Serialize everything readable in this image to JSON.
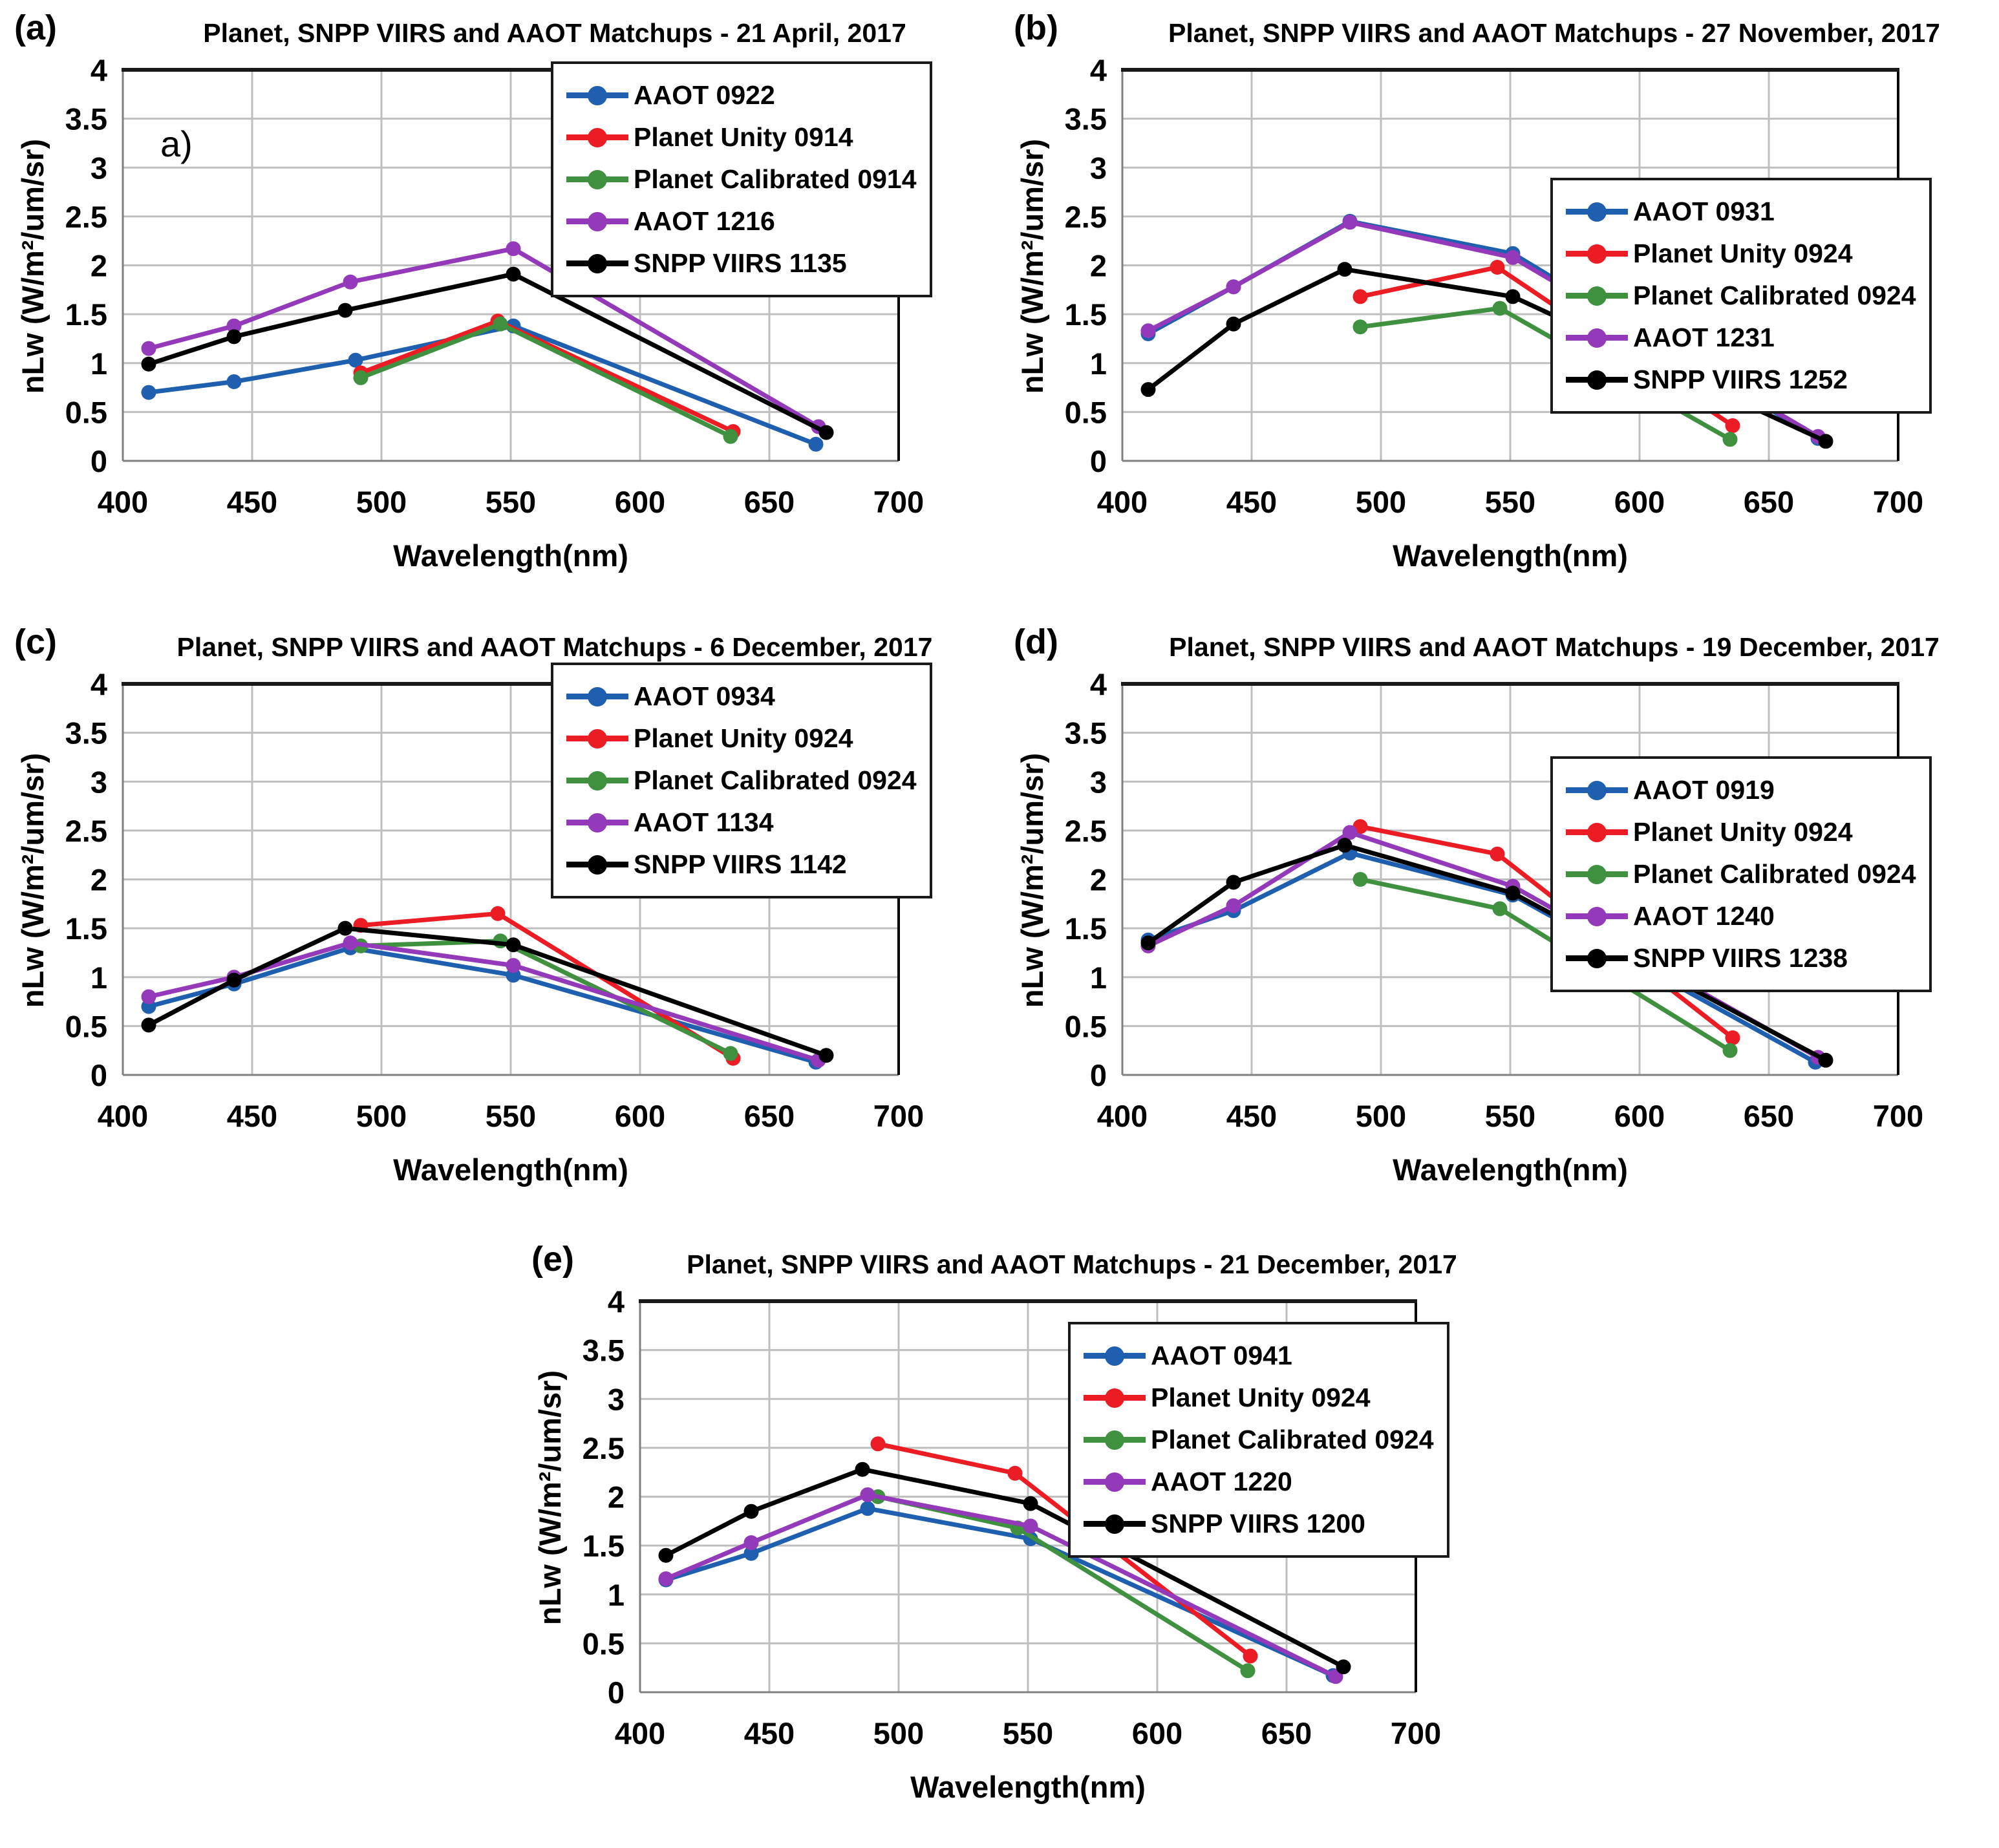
{
  "figure": {
    "background": "#FFFFFF",
    "x_label": "Wavelength(nm)",
    "y_label": "nLw (W/m²/um/sr)"
  },
  "axes": {
    "x_min": 400,
    "x_max": 700,
    "x_ticks": [
      400,
      450,
      500,
      550,
      600,
      650,
      700
    ],
    "y_min": 0,
    "y_max": 4,
    "y_ticks": [
      0,
      0.5,
      1,
      1.5,
      2,
      2.5,
      3,
      3.5,
      4
    ],
    "y_tick_labels": [
      "0",
      "0.5",
      "1",
      "1.5",
      "2",
      "2.5",
      "3",
      "3.5",
      "4"
    ],
    "grid": true,
    "grid_color": "#BFBFBF",
    "legend_position": "top-right"
  },
  "chart_data": [
    {
      "type": "line",
      "panel_label": "(a)",
      "title": "Planet, SNPP VIIRS and AAOT Matchups - 21 April, 2017",
      "annotation": "a)",
      "x_label": "Wavelength(nm)",
      "y_label": "nLw (W/m²/um/sr)",
      "legend_top": 95,
      "series": [
        {
          "name": "AAOT 0922",
          "color": "#1F5FAF",
          "x": [
            410,
            443,
            490,
            551,
            668
          ],
          "y": [
            0.7,
            0.81,
            1.03,
            1.38,
            0.17
          ]
        },
        {
          "name": "Planet Unity 0914",
          "color": "#EC1C24",
          "x": [
            492,
            545,
            636
          ],
          "y": [
            0.9,
            1.43,
            0.3
          ]
        },
        {
          "name": "Planet Calibrated 0914",
          "color": "#3F9140",
          "x": [
            492,
            546,
            635
          ],
          "y": [
            0.85,
            1.4,
            0.25
          ]
        },
        {
          "name": "AAOT 1216",
          "color": "#9339B9",
          "x": [
            410,
            443,
            488,
            551,
            669
          ],
          "y": [
            1.15,
            1.38,
            1.83,
            2.17,
            0.35
          ]
        },
        {
          "name": "SNPP VIIRS 1135",
          "color": "#000000",
          "x": [
            410,
            443,
            486,
            551,
            672
          ],
          "y": [
            0.99,
            1.27,
            1.54,
            1.91,
            0.29
          ]
        }
      ]
    },
    {
      "type": "line",
      "panel_label": "(b)",
      "title": "Planet, SNPP VIIRS and AAOT Matchups - 27 November, 2017",
      "annotation": "",
      "x_label": "Wavelength(nm)",
      "y_label": "nLw (W/m²/um/sr)",
      "legend_top": 275,
      "series": [
        {
          "name": "AAOT 0931",
          "color": "#1F5FAF",
          "x": [
            410,
            443,
            488,
            551,
            669
          ],
          "y": [
            1.3,
            1.78,
            2.45,
            2.12,
            0.23
          ]
        },
        {
          "name": "Planet Unity 0924",
          "color": "#EC1C24",
          "x": [
            492,
            545,
            636
          ],
          "y": [
            1.68,
            1.98,
            0.36
          ]
        },
        {
          "name": "Planet Calibrated 0924",
          "color": "#3F9140",
          "x": [
            492,
            546,
            635
          ],
          "y": [
            1.37,
            1.56,
            0.22
          ]
        },
        {
          "name": "AAOT 1231",
          "color": "#9339B9",
          "x": [
            410,
            443,
            488,
            551,
            669
          ],
          "y": [
            1.33,
            1.78,
            2.44,
            2.08,
            0.25
          ]
        },
        {
          "name": "SNPP VIIRS 1252",
          "color": "#000000",
          "x": [
            410,
            443,
            486,
            551,
            672
          ],
          "y": [
            0.73,
            1.4,
            1.96,
            1.68,
            0.2
          ]
        }
      ]
    },
    {
      "type": "line",
      "panel_label": "(c)",
      "title": "Planet, SNPP VIIRS and AAOT Matchups - 6 December, 2017",
      "annotation": "",
      "x_label": "Wavelength(nm)",
      "y_label": "nLw (W/m²/um/sr)",
      "legend_top": 75,
      "series": [
        {
          "name": "AAOT 0934",
          "color": "#1F5FAF",
          "x": [
            410,
            443,
            488,
            551,
            668
          ],
          "y": [
            0.7,
            0.93,
            1.3,
            1.02,
            0.13
          ]
        },
        {
          "name": "Planet Unity 0924",
          "color": "#EC1C24",
          "x": [
            492,
            545,
            636
          ],
          "y": [
            1.53,
            1.65,
            0.17
          ]
        },
        {
          "name": "Planet Calibrated 0924",
          "color": "#3F9140",
          "x": [
            492,
            546,
            635
          ],
          "y": [
            1.32,
            1.37,
            0.22
          ]
        },
        {
          "name": "AAOT 1134",
          "color": "#9339B9",
          "x": [
            410,
            443,
            488,
            551,
            669
          ],
          "y": [
            0.8,
            1.0,
            1.35,
            1.12,
            0.15
          ]
        },
        {
          "name": "SNPP VIIRS 1142",
          "color": "#000000",
          "x": [
            410,
            443,
            486,
            551,
            672
          ],
          "y": [
            0.51,
            0.97,
            1.5,
            1.33,
            0.2
          ]
        }
      ]
    },
    {
      "type": "line",
      "panel_label": "(d)",
      "title": "Planet, SNPP VIIRS and AAOT Matchups -  19 December, 2017",
      "annotation": "",
      "x_label": "Wavelength(nm)",
      "y_label": "nLw (W/m²/um/sr)",
      "legend_top": 220,
      "series": [
        {
          "name": "AAOT 0919",
          "color": "#1F5FAF",
          "x": [
            410,
            443,
            488,
            551,
            668
          ],
          "y": [
            1.38,
            1.68,
            2.27,
            1.84,
            0.13
          ]
        },
        {
          "name": "Planet Unity 0924",
          "color": "#EC1C24",
          "x": [
            492,
            545,
            636
          ],
          "y": [
            2.54,
            2.26,
            0.38
          ]
        },
        {
          "name": "Planet Calibrated 0924",
          "color": "#3F9140",
          "x": [
            492,
            546,
            635
          ],
          "y": [
            2.0,
            1.7,
            0.25
          ]
        },
        {
          "name": "AAOT 1240",
          "color": "#9339B9",
          "x": [
            410,
            443,
            488,
            551,
            669
          ],
          "y": [
            1.32,
            1.73,
            2.48,
            1.93,
            0.18
          ]
        },
        {
          "name": "SNPP VIIRS 1238",
          "color": "#000000",
          "x": [
            410,
            443,
            486,
            551,
            672
          ],
          "y": [
            1.35,
            1.97,
            2.35,
            1.86,
            0.15
          ]
        }
      ]
    },
    {
      "type": "line",
      "panel_label": "(e)",
      "title": "Planet, SNPP VIIRS and AAOT Matchups -  21 December, 2017",
      "annotation": "",
      "x_label": "Wavelength(nm)",
      "y_label": "nLw (W/m²/um/sr)",
      "legend_top": 140,
      "series": [
        {
          "name": "AAOT 0941",
          "color": "#1F5FAF",
          "x": [
            410,
            443,
            488,
            551,
            668
          ],
          "y": [
            1.15,
            1.42,
            1.88,
            1.57,
            0.17
          ]
        },
        {
          "name": "Planet Unity 0924",
          "color": "#EC1C24",
          "x": [
            492,
            545,
            636
          ],
          "y": [
            2.54,
            2.24,
            0.37
          ]
        },
        {
          "name": "Planet Calibrated 0924",
          "color": "#3F9140",
          "x": [
            492,
            546,
            635
          ],
          "y": [
            2.0,
            1.68,
            0.22
          ]
        },
        {
          "name": "AAOT 1220",
          "color": "#9339B9",
          "x": [
            410,
            443,
            488,
            551,
            669
          ],
          "y": [
            1.16,
            1.53,
            2.02,
            1.7,
            0.16
          ]
        },
        {
          "name": "SNPP VIIRS 1200",
          "color": "#000000",
          "x": [
            410,
            443,
            486,
            551,
            672
          ],
          "y": [
            1.4,
            1.85,
            2.28,
            1.93,
            0.26
          ]
        }
      ]
    }
  ]
}
